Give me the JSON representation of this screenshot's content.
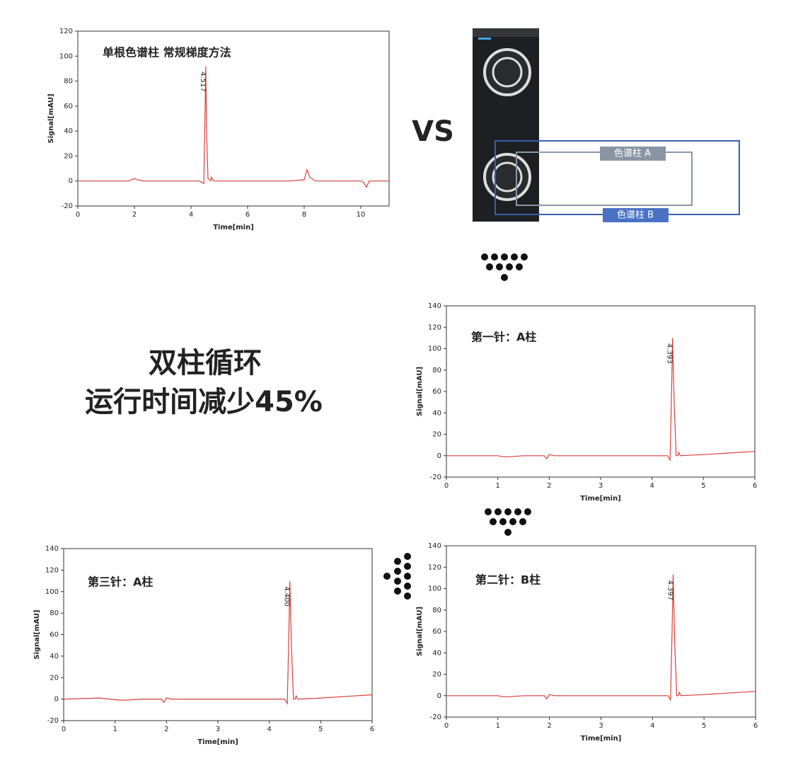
{
  "headline": {
    "vs": "VS",
    "line1": "双柱循环",
    "line2": "运行时间减少45%"
  },
  "diagram": {
    "column_a": "色谱柱 A",
    "column_b": "色谱柱 B"
  },
  "chart_data": [
    {
      "type": "line",
      "title": "单根色谱柱 常规梯度方法",
      "x_label": "Time[min]",
      "y_label": "Signal[mAU]",
      "annotation": "4.517",
      "xlim": [
        0,
        11
      ],
      "xticks": [
        0,
        2,
        4,
        6,
        8,
        10
      ],
      "ylim": [
        -20,
        120
      ],
      "yticks": [
        -20,
        0,
        20,
        40,
        60,
        80,
        100,
        120
      ],
      "x": [
        0,
        1.8,
        2.0,
        2.1,
        2.3,
        4.3,
        4.45,
        4.5,
        4.52,
        4.55,
        4.6,
        4.7,
        4.72,
        4.8,
        7,
        7.5,
        8,
        8.1,
        8.2,
        8.4,
        10,
        10.1,
        10.2,
        10.3,
        11
      ],
      "series": [
        {
          "color": "#d9403a",
          "values": [
            0,
            0,
            2,
            1,
            0,
            0,
            -2,
            60,
            92,
            40,
            2,
            0,
            3,
            0,
            0,
            0,
            1,
            9,
            3,
            0,
            0,
            -1,
            -5,
            0,
            0
          ]
        }
      ]
    },
    {
      "type": "line",
      "title": "第一针：A柱",
      "x_label": "Time[min]",
      "y_label": "Signal[mAU]",
      "annotation": "4.393",
      "xlim": [
        0,
        6
      ],
      "xticks": [
        0,
        1,
        2,
        3,
        4,
        5,
        6
      ],
      "ylim": [
        -20,
        140
      ],
      "yticks": [
        -20,
        0,
        20,
        40,
        60,
        80,
        100,
        120,
        140
      ],
      "x": [
        0,
        1,
        1.1,
        1.2,
        1.5,
        1.9,
        1.95,
        2.0,
        2.1,
        3,
        4.3,
        4.35,
        4.38,
        4.4,
        4.43,
        4.47,
        4.5,
        4.52,
        4.55,
        5,
        6
      ],
      "series": [
        {
          "color": "#d9403a",
          "values": [
            0,
            0,
            -1,
            -1,
            0,
            0,
            -3,
            1,
            0,
            0,
            0,
            -4,
            60,
            110,
            50,
            0,
            0,
            3,
            0,
            1,
            4
          ]
        }
      ]
    },
    {
      "type": "line",
      "title": "第二针：B柱",
      "x_label": "Time[min]",
      "y_label": "Signal[mAU]",
      "annotation": "4.397",
      "xlim": [
        0,
        6
      ],
      "xticks": [
        0,
        1,
        2,
        3,
        4,
        5,
        6
      ],
      "ylim": [
        -20,
        140
      ],
      "yticks": [
        -20,
        0,
        20,
        40,
        60,
        80,
        100,
        120,
        140
      ],
      "x": [
        0,
        1,
        1.1,
        1.2,
        1.5,
        1.9,
        1.95,
        2.0,
        2.1,
        3,
        4.3,
        4.35,
        4.38,
        4.4,
        4.43,
        4.47,
        4.5,
        4.52,
        4.55,
        5,
        6
      ],
      "series": [
        {
          "color": "#d9403a",
          "values": [
            0,
            0,
            -1,
            -1,
            0,
            0,
            -3,
            1,
            0,
            0,
            0,
            -4,
            60,
            113,
            50,
            0,
            0,
            3,
            0,
            1,
            4
          ]
        }
      ]
    },
    {
      "type": "line",
      "title": "第三针：A柱",
      "x_label": "Time[min]",
      "y_label": "Signal[mAU]",
      "annotation": "4.400",
      "xlim": [
        0,
        6
      ],
      "xticks": [
        0,
        1,
        2,
        3,
        4,
        5,
        6
      ],
      "ylim": [
        -20,
        140
      ],
      "yticks": [
        -20,
        0,
        20,
        40,
        60,
        80,
        100,
        120,
        140
      ],
      "x": [
        0,
        0.7,
        1.1,
        1.2,
        1.5,
        1.9,
        1.95,
        2.0,
        2.1,
        3,
        4.3,
        4.35,
        4.38,
        4.4,
        4.43,
        4.47,
        4.5,
        4.52,
        4.55,
        5,
        6
      ],
      "series": [
        {
          "color": "#d9403a",
          "values": [
            0,
            1,
            -1,
            -1,
            0,
            0,
            -3,
            1,
            0,
            0,
            0,
            -4,
            60,
            110,
            50,
            0,
            0,
            3,
            0,
            1,
            4
          ]
        }
      ]
    }
  ]
}
